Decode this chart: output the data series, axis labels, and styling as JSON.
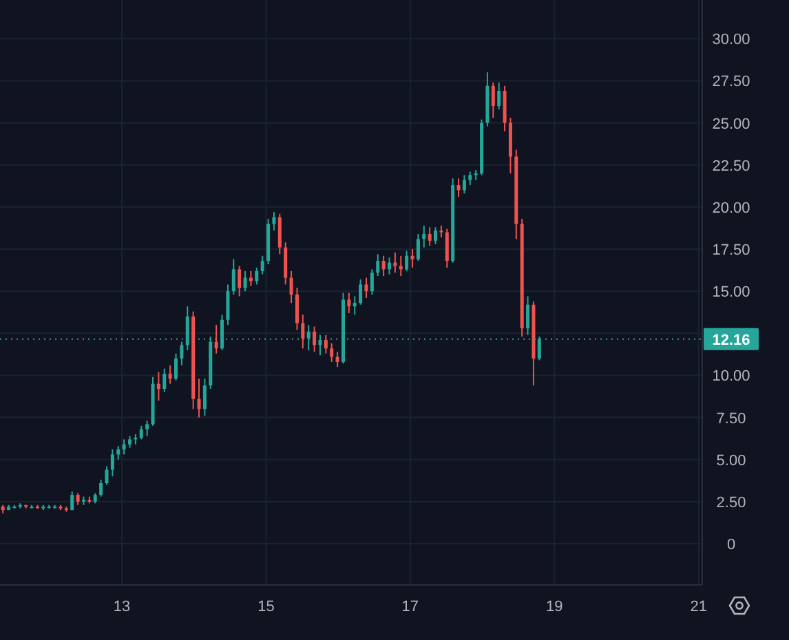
{
  "chart_data": {
    "type": "candlestick",
    "x": [
      11.35,
      11.43,
      11.51,
      11.59,
      11.67,
      11.75,
      11.83,
      11.91,
      11.99,
      12.07,
      12.15,
      12.23,
      12.31,
      12.39,
      12.47,
      12.55,
      12.63,
      12.71,
      12.79,
      12.87,
      12.95,
      13.03,
      13.11,
      13.19,
      13.27,
      13.35,
      13.43,
      13.51,
      13.59,
      13.67,
      13.75,
      13.83,
      13.91,
      13.99,
      14.07,
      14.15,
      14.23,
      14.31,
      14.39,
      14.47,
      14.55,
      14.63,
      14.71,
      14.79,
      14.87,
      14.95,
      15.03,
      15.11,
      15.19,
      15.27,
      15.35,
      15.43,
      15.51,
      15.59,
      15.67,
      15.75,
      15.83,
      15.91,
      15.99,
      16.07,
      16.15,
      16.23,
      16.31,
      16.39,
      16.47,
      16.55,
      16.63,
      16.71,
      16.79,
      16.87,
      16.95,
      17.03,
      17.11,
      17.19,
      17.27,
      17.35,
      17.43,
      17.51,
      17.59,
      17.67,
      17.75,
      17.83,
      17.91,
      17.99,
      18.07,
      18.15,
      18.23,
      18.31,
      18.39,
      18.47,
      18.55,
      18.63,
      18.71,
      18.79
    ],
    "ohlc": [
      [
        2.2,
        2.3,
        1.8,
        2.0
      ],
      [
        2.0,
        2.3,
        2.0,
        2.2
      ],
      [
        2.2,
        2.3,
        2.1,
        2.2
      ],
      [
        2.2,
        2.4,
        2.1,
        2.3
      ],
      [
        2.3,
        2.3,
        2.1,
        2.2
      ],
      [
        2.2,
        2.3,
        2.1,
        2.2
      ],
      [
        2.2,
        2.3,
        2.1,
        2.1
      ],
      [
        2.1,
        2.3,
        2.0,
        2.2
      ],
      [
        2.2,
        2.3,
        2.1,
        2.2
      ],
      [
        2.2,
        2.3,
        2.1,
        2.2
      ],
      [
        2.2,
        2.3,
        2.0,
        2.1
      ],
      [
        2.1,
        2.2,
        1.9,
        2.0
      ],
      [
        2.0,
        3.1,
        2.0,
        2.9
      ],
      [
        2.9,
        3.0,
        2.3,
        2.5
      ],
      [
        2.5,
        2.8,
        2.3,
        2.6
      ],
      [
        2.6,
        2.8,
        2.4,
        2.5
      ],
      [
        2.5,
        3.0,
        2.4,
        2.9
      ],
      [
        2.9,
        3.8,
        2.8,
        3.6
      ],
      [
        3.6,
        4.6,
        3.5,
        4.4
      ],
      [
        4.4,
        5.6,
        4.0,
        5.3
      ],
      [
        5.3,
        5.8,
        5.0,
        5.6
      ],
      [
        5.6,
        6.2,
        5.3,
        5.9
      ],
      [
        5.9,
        6.4,
        5.7,
        6.2
      ],
      [
        6.2,
        6.5,
        5.9,
        6.3
      ],
      [
        6.3,
        7.0,
        6.2,
        6.8
      ],
      [
        6.8,
        7.3,
        6.4,
        7.1
      ],
      [
        7.1,
        9.9,
        7.0,
        9.5
      ],
      [
        9.5,
        10.2,
        8.5,
        9.2
      ],
      [
        9.2,
        10.4,
        9.0,
        10.1
      ],
      [
        10.1,
        10.6,
        9.5,
        9.8
      ],
      [
        9.8,
        11.3,
        9.7,
        11.0
      ],
      [
        11.0,
        12.0,
        10.6,
        11.8
      ],
      [
        11.8,
        14.1,
        11.5,
        13.5
      ],
      [
        13.5,
        13.8,
        8.0,
        8.6
      ],
      [
        8.6,
        9.8,
        7.5,
        8.0
      ],
      [
        8.0,
        9.8,
        7.6,
        9.4
      ],
      [
        9.4,
        12.3,
        9.2,
        12.0
      ],
      [
        12.0,
        13.0,
        11.3,
        11.6
      ],
      [
        11.6,
        13.6,
        11.5,
        13.3
      ],
      [
        13.3,
        15.4,
        13.0,
        15.0
      ],
      [
        15.0,
        16.9,
        14.8,
        16.3
      ],
      [
        16.3,
        16.5,
        14.7,
        15.2
      ],
      [
        15.2,
        16.2,
        15.0,
        15.8
      ],
      [
        15.8,
        16.2,
        15.3,
        15.6
      ],
      [
        15.6,
        16.4,
        15.4,
        16.2
      ],
      [
        16.2,
        17.1,
        16.0,
        16.8
      ],
      [
        16.8,
        19.3,
        16.6,
        19.0
      ],
      [
        19.0,
        19.7,
        18.6,
        19.4
      ],
      [
        19.4,
        19.6,
        17.2,
        17.6
      ],
      [
        17.6,
        17.9,
        15.4,
        15.8
      ],
      [
        15.8,
        16.2,
        14.3,
        14.8
      ],
      [
        14.8,
        15.2,
        12.7,
        13.1
      ],
      [
        13.1,
        13.6,
        11.6,
        12.2
      ],
      [
        12.2,
        13.0,
        11.5,
        12.6
      ],
      [
        12.6,
        12.9,
        11.4,
        11.8
      ],
      [
        11.8,
        12.4,
        11.2,
        12.1
      ],
      [
        12.1,
        12.4,
        11.3,
        11.6
      ],
      [
        11.6,
        11.9,
        10.8,
        11.1
      ],
      [
        11.1,
        11.4,
        10.5,
        10.8
      ],
      [
        10.8,
        14.9,
        10.7,
        14.5
      ],
      [
        14.5,
        14.9,
        13.7,
        14.1
      ],
      [
        14.1,
        14.7,
        13.6,
        14.3
      ],
      [
        14.3,
        15.7,
        14.2,
        15.4
      ],
      [
        15.4,
        15.8,
        14.6,
        15.0
      ],
      [
        15.0,
        16.3,
        14.8,
        16.1
      ],
      [
        16.1,
        17.2,
        15.9,
        16.8
      ],
      [
        16.8,
        17.1,
        15.9,
        16.3
      ],
      [
        16.3,
        17.0,
        16.0,
        16.7
      ],
      [
        16.7,
        17.3,
        16.1,
        16.5
      ],
      [
        16.5,
        17.1,
        15.9,
        16.3
      ],
      [
        16.3,
        17.4,
        16.2,
        17.1
      ],
      [
        17.1,
        17.5,
        16.4,
        16.9
      ],
      [
        16.9,
        18.4,
        16.8,
        18.1
      ],
      [
        18.1,
        18.9,
        17.6,
        18.4
      ],
      [
        18.4,
        18.8,
        17.7,
        18.0
      ],
      [
        18.0,
        18.8,
        17.8,
        18.6
      ],
      [
        18.6,
        18.9,
        18.2,
        18.5
      ],
      [
        18.5,
        18.7,
        16.4,
        16.8
      ],
      [
        16.8,
        21.7,
        16.7,
        21.3
      ],
      [
        21.3,
        21.7,
        20.6,
        21.0
      ],
      [
        21.0,
        21.9,
        20.8,
        21.6
      ],
      [
        21.6,
        22.1,
        21.3,
        21.9
      ],
      [
        21.9,
        22.2,
        21.6,
        22.0
      ],
      [
        22.0,
        25.2,
        21.9,
        25.0
      ],
      [
        25.0,
        28.0,
        24.8,
        27.2
      ],
      [
        27.2,
        27.4,
        25.3,
        26.0
      ],
      [
        26.0,
        27.4,
        25.8,
        26.9
      ],
      [
        26.9,
        27.2,
        24.5,
        25.0
      ],
      [
        25.0,
        25.3,
        22.0,
        23.0
      ],
      [
        23.0,
        23.4,
        18.1,
        19.0
      ],
      [
        19.0,
        19.3,
        12.3,
        12.8
      ],
      [
        12.8,
        14.7,
        12.4,
        14.2
      ],
      [
        14.2,
        14.4,
        9.4,
        11.0
      ],
      [
        11.0,
        12.3,
        10.9,
        12.16
      ]
    ],
    "xlim": [
      11.31,
      21.05
    ],
    "xticks": [
      13,
      15,
      17,
      19,
      21
    ],
    "ylim": [
      -2.45,
      32.3
    ],
    "yticks": [
      0,
      {
        "value": 2.5,
        "label": "2.50"
      },
      {
        "value": 5,
        "label": "5.00"
      },
      {
        "value": 7.5,
        "label": "7.50"
      },
      {
        "value": 10,
        "label": "10.00"
      },
      {
        "value": 12.5,
        "label": null
      },
      {
        "value": 15,
        "label": "15.00"
      },
      {
        "value": 17.5,
        "label": "17.50"
      },
      {
        "value": 20,
        "label": "20.00"
      },
      {
        "value": 22.5,
        "label": "22.50"
      },
      {
        "value": 25,
        "label": "25.00"
      },
      {
        "value": 27.5,
        "label": "27.50"
      },
      {
        "value": 30,
        "label": "30.00"
      }
    ],
    "grid": true,
    "ref_lines": [
      {
        "axis": "y",
        "value": 12.16,
        "label": "12.16",
        "color": "#26a69a",
        "line_style": "dotted"
      }
    ]
  }
}
